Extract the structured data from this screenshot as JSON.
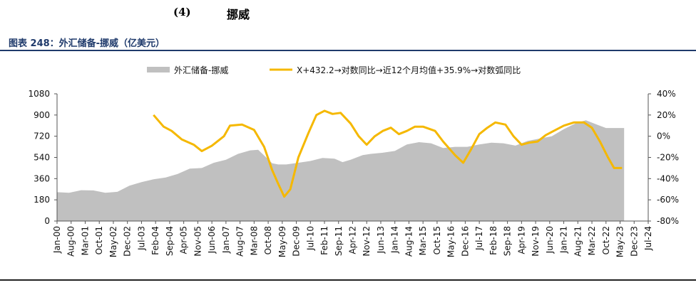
{
  "heading": {
    "number": "(4)",
    "title": "挪威"
  },
  "caption": "图表 248：外汇储备-挪威（亿美元）",
  "colors": {
    "area": "#c0c0c0",
    "line": "#f5b800",
    "caption": "#1f3a6b",
    "axis": "#555555",
    "text": "#111111"
  },
  "chart_data": {
    "type": "area",
    "legend": [
      {
        "name": "外汇储备-挪威",
        "kind": "area"
      },
      {
        "name": "X+432.2→对数同比→近12个月均值+35.9%→对数弧同比",
        "kind": "line"
      }
    ],
    "legend_position": "top-center",
    "grid": false,
    "y_left": {
      "ticks": [
        "1080",
        "900",
        "720",
        "540",
        "360",
        "180",
        "0"
      ],
      "range": [
        0,
        1080
      ]
    },
    "y_right": {
      "ticks": [
        "40%",
        "20%",
        "0%",
        "-20%",
        "-40%",
        "-60%",
        "-80%"
      ],
      "range": [
        -80,
        40
      ],
      "unit": "%"
    },
    "x_ticks": [
      "Jan-00",
      "Aug-00",
      "Mar-01",
      "Oct-01",
      "May-02",
      "Dec-02",
      "Jul-03",
      "Feb-04",
      "Sep-04",
      "Apr-05",
      "Nov-05",
      "Jun-06",
      "Jan-07",
      "Aug-07",
      "Mar-08",
      "Oct-08",
      "May-09",
      "Dec-09",
      "Jul-10",
      "Feb-11",
      "Sep-11",
      "Apr-12",
      "Nov-12",
      "Jun-13",
      "Jan-14",
      "Aug-14",
      "Mar-15",
      "Oct-15",
      "May-16",
      "Dec-16",
      "Jul-17",
      "Feb-18",
      "Sep-18",
      "Apr-19",
      "Nov-19",
      "Jun-20",
      "Jan-21",
      "Aug-21",
      "Mar-22",
      "Oct-22",
      "May-23",
      "Dec-23",
      "Jul-24"
    ],
    "series": [
      {
        "name": "外汇储备-挪威",
        "axis": "left",
        "points": [
          [
            "2000-01",
            245
          ],
          [
            "2000-07",
            240
          ],
          [
            "2001-01",
            262
          ],
          [
            "2001-07",
            260
          ],
          [
            "2002-01",
            240
          ],
          [
            "2002-07",
            248
          ],
          [
            "2003-01",
            300
          ],
          [
            "2003-07",
            330
          ],
          [
            "2004-01",
            355
          ],
          [
            "2004-07",
            370
          ],
          [
            "2005-01",
            400
          ],
          [
            "2005-07",
            445
          ],
          [
            "2006-01",
            450
          ],
          [
            "2006-07",
            495
          ],
          [
            "2007-01",
            520
          ],
          [
            "2007-07",
            570
          ],
          [
            "2008-01",
            600
          ],
          [
            "2008-05",
            605
          ],
          [
            "2008-09",
            540
          ],
          [
            "2008-12",
            490
          ],
          [
            "2009-03",
            480
          ],
          [
            "2009-07",
            480
          ],
          [
            "2010-01",
            495
          ],
          [
            "2010-07",
            510
          ],
          [
            "2011-01",
            535
          ],
          [
            "2011-07",
            530
          ],
          [
            "2011-11",
            500
          ],
          [
            "2012-03",
            520
          ],
          [
            "2012-09",
            560
          ],
          [
            "2013-01",
            570
          ],
          [
            "2013-07",
            580
          ],
          [
            "2014-01",
            595
          ],
          [
            "2014-07",
            650
          ],
          [
            "2015-01",
            670
          ],
          [
            "2015-07",
            660
          ],
          [
            "2016-01",
            620
          ],
          [
            "2016-07",
            630
          ],
          [
            "2017-01",
            630
          ],
          [
            "2017-07",
            650
          ],
          [
            "2018-01",
            665
          ],
          [
            "2018-07",
            660
          ],
          [
            "2019-01",
            640
          ],
          [
            "2019-07",
            680
          ],
          [
            "2020-01",
            700
          ],
          [
            "2020-07",
            720
          ],
          [
            "2021-01",
            780
          ],
          [
            "2021-07",
            830
          ],
          [
            "2021-12",
            855
          ],
          [
            "2022-06",
            815
          ],
          [
            "2022-10",
            790
          ],
          [
            "2023-03",
            790
          ],
          [
            "2023-07",
            790
          ]
        ]
      },
      {
        "name": "X+432.2→对数同比→近12个月均值+35.9%→对数弧同比",
        "axis": "right",
        "points": [
          [
            "2004-01",
            20
          ],
          [
            "2004-06",
            9
          ],
          [
            "2004-10",
            5
          ],
          [
            "2005-03",
            -3
          ],
          [
            "2005-09",
            -8
          ],
          [
            "2006-01",
            -14
          ],
          [
            "2006-06",
            -9
          ],
          [
            "2006-12",
            0
          ],
          [
            "2007-03",
            10
          ],
          [
            "2007-09",
            11
          ],
          [
            "2008-03",
            6
          ],
          [
            "2008-08",
            -10
          ],
          [
            "2008-12",
            -32
          ],
          [
            "2009-03",
            -45
          ],
          [
            "2009-06",
            -57
          ],
          [
            "2009-09",
            -50
          ],
          [
            "2010-01",
            -20
          ],
          [
            "2010-06",
            3
          ],
          [
            "2010-10",
            20
          ],
          [
            "2011-02",
            24
          ],
          [
            "2011-06",
            21
          ],
          [
            "2011-10",
            22
          ],
          [
            "2012-03",
            12
          ],
          [
            "2012-07",
            0
          ],
          [
            "2012-11",
            -8
          ],
          [
            "2013-03",
            0
          ],
          [
            "2013-07",
            5
          ],
          [
            "2013-11",
            8
          ],
          [
            "2014-03",
            2
          ],
          [
            "2014-07",
            5
          ],
          [
            "2014-11",
            9
          ],
          [
            "2015-03",
            9
          ],
          [
            "2015-09",
            5
          ],
          [
            "2016-01",
            -5
          ],
          [
            "2016-07",
            -18
          ],
          [
            "2016-11",
            -25
          ],
          [
            "2017-03",
            -12
          ],
          [
            "2017-07",
            2
          ],
          [
            "2017-11",
            8
          ],
          [
            "2018-03",
            13
          ],
          [
            "2018-08",
            11
          ],
          [
            "2018-12",
            0
          ],
          [
            "2019-04",
            -8
          ],
          [
            "2019-08",
            -6
          ],
          [
            "2019-12",
            -5
          ],
          [
            "2020-04",
            1
          ],
          [
            "2020-08",
            5
          ],
          [
            "2021-01",
            10
          ],
          [
            "2021-06",
            13
          ],
          [
            "2021-11",
            13
          ],
          [
            "2022-03",
            8
          ],
          [
            "2022-07",
            -5
          ],
          [
            "2022-11",
            -20
          ],
          [
            "2023-02",
            -30
          ],
          [
            "2023-06",
            -30
          ]
        ]
      }
    ]
  }
}
